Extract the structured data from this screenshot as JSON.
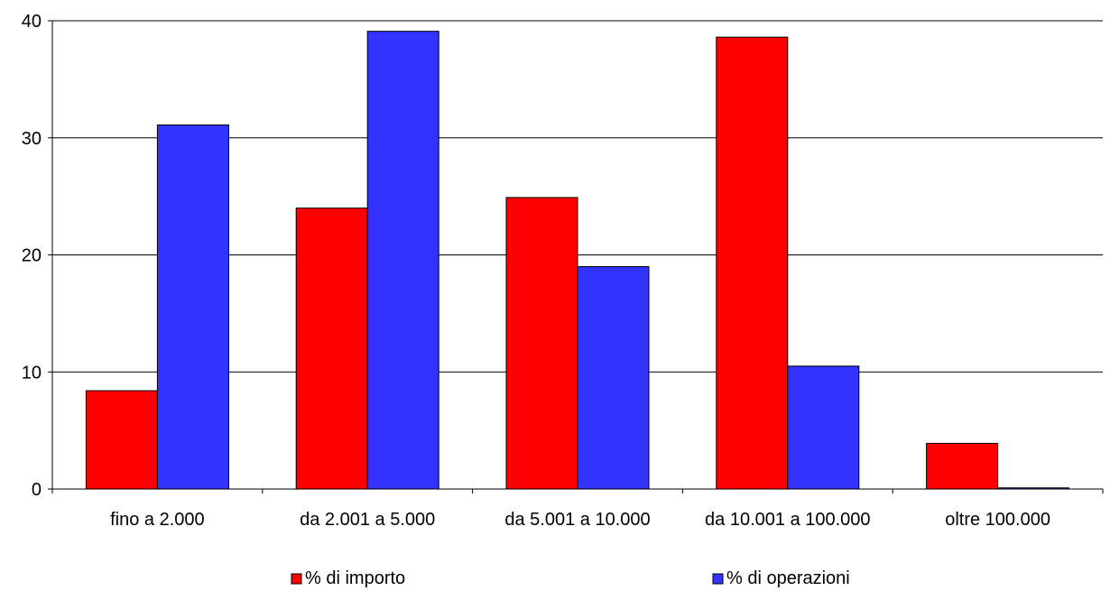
{
  "chart_data": {
    "type": "bar",
    "categories": [
      "fino a 2.000",
      "da 2.001 a 5.000",
      "da 5.001 a 10.000",
      "da 10.001 a 100.000",
      "oltre 100.000"
    ],
    "series": [
      {
        "name": "% di importo",
        "values": [
          8.4,
          24.0,
          24.9,
          38.6,
          3.9
        ],
        "color": "#ff0000"
      },
      {
        "name": "% di operazioni",
        "values": [
          31.1,
          39.1,
          19.0,
          10.5,
          0.1
        ],
        "color": "#3333ff"
      }
    ],
    "yticks": [
      0,
      10,
      20,
      30,
      40
    ],
    "ylim": [
      0,
      40
    ],
    "grid": true,
    "legend_position": "bottom"
  }
}
